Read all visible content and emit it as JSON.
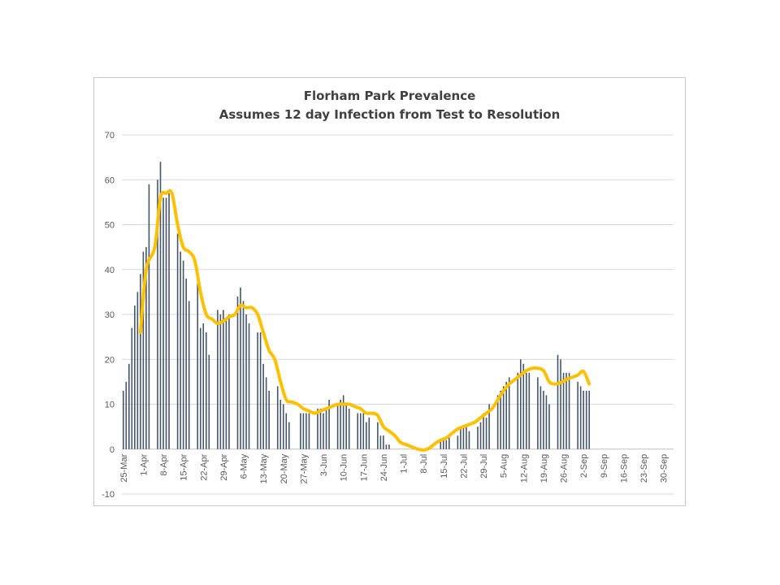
{
  "chart_data": {
    "type": "bar",
    "title": "Florham Park Prevalence",
    "subtitle": "Assumes 12 day Infection from Test to Resolution",
    "xlabel": "",
    "ylabel": "",
    "ylim": [
      -10,
      70
    ],
    "yticks": [
      -10,
      0,
      10,
      20,
      30,
      40,
      50,
      60,
      70
    ],
    "grid": true,
    "legend": "none",
    "x_start": "2020-03-25",
    "x_end": "2020-10-04",
    "xtick_labels": [
      "25-Mar",
      "1-Apr",
      "8-Apr",
      "15-Apr",
      "22-Apr",
      "29-Apr",
      "6-May",
      "13-May",
      "20-May",
      "27-May",
      "3-Jun",
      "10-Jun",
      "17-Jun",
      "24-Jun",
      "1-Jul",
      "8-Jul",
      "15-Jul",
      "22-Jul",
      "29-Jul",
      "5-Aug",
      "12-Aug",
      "19-Aug",
      "26-Aug",
      "2-Sep",
      "9-Sep",
      "16-Sep",
      "23-Sep",
      "30-Sep"
    ],
    "colors": {
      "bars": "#44546a",
      "line": "#ffc000",
      "grid": "#d9d9d9"
    },
    "series": [
      {
        "type": "bar",
        "x": [
          "2020-03-25",
          "2020-03-26",
          "2020-03-27",
          "2020-03-28",
          "2020-03-29",
          "2020-03-30",
          "2020-03-31",
          "2020-04-01",
          "2020-04-02",
          "2020-04-03",
          "2020-04-06",
          "2020-04-07",
          "2020-04-08",
          "2020-04-09",
          "2020-04-10",
          "2020-04-13",
          "2020-04-14",
          "2020-04-15",
          "2020-04-16",
          "2020-04-17",
          "2020-04-20",
          "2020-04-21",
          "2020-04-22",
          "2020-04-23",
          "2020-04-24",
          "2020-04-27",
          "2020-04-28",
          "2020-04-29",
          "2020-04-30",
          "2020-05-01",
          "2020-05-04",
          "2020-05-05",
          "2020-05-06",
          "2020-05-07",
          "2020-05-08",
          "2020-05-11",
          "2020-05-12",
          "2020-05-13",
          "2020-05-14",
          "2020-05-15",
          "2020-05-18",
          "2020-05-19",
          "2020-05-20",
          "2020-05-21",
          "2020-05-22",
          "2020-05-26",
          "2020-05-27",
          "2020-05-28",
          "2020-05-29",
          "2020-06-01",
          "2020-06-02",
          "2020-06-03",
          "2020-06-04",
          "2020-06-05",
          "2020-06-08",
          "2020-06-09",
          "2020-06-10",
          "2020-06-11",
          "2020-06-12",
          "2020-06-15",
          "2020-06-16",
          "2020-06-17",
          "2020-06-18",
          "2020-06-19",
          "2020-06-22",
          "2020-06-23",
          "2020-06-24",
          "2020-06-25",
          "2020-06-26",
          "2020-06-30",
          "2020-07-01",
          "2020-07-14",
          "2020-07-15",
          "2020-07-16",
          "2020-07-17",
          "2020-07-20",
          "2020-07-21",
          "2020-07-22",
          "2020-07-23",
          "2020-07-24",
          "2020-07-27",
          "2020-07-28",
          "2020-07-29",
          "2020-07-30",
          "2020-07-31",
          "2020-08-03",
          "2020-08-04",
          "2020-08-05",
          "2020-08-06",
          "2020-08-07",
          "2020-08-10",
          "2020-08-11",
          "2020-08-12",
          "2020-08-13",
          "2020-08-14",
          "2020-08-17",
          "2020-08-18",
          "2020-08-19",
          "2020-08-20",
          "2020-08-21",
          "2020-08-24",
          "2020-08-25",
          "2020-08-26",
          "2020-08-27",
          "2020-08-28",
          "2020-08-31",
          "2020-09-01",
          "2020-09-02",
          "2020-09-03",
          "2020-09-04"
        ],
        "values": [
          13,
          15,
          19,
          27,
          32,
          35,
          39,
          44,
          45,
          59,
          60,
          64,
          56,
          56,
          57,
          48,
          44,
          42,
          38,
          33,
          37,
          27,
          28,
          26,
          21,
          31,
          30,
          31,
          29,
          30,
          34,
          36,
          33,
          30,
          28,
          26,
          26,
          19,
          16,
          13,
          14,
          11,
          10,
          8,
          6,
          8,
          8,
          8,
          8,
          9,
          9,
          8,
          9,
          11,
          10,
          11,
          12,
          10,
          9,
          8,
          8,
          8,
          6,
          7,
          6,
          3,
          3,
          1,
          1,
          0,
          0,
          2,
          2,
          2,
          3,
          3,
          5,
          5,
          5,
          4,
          5,
          6,
          8,
          7,
          10,
          12,
          13,
          14,
          15,
          16,
          17,
          20,
          19,
          17,
          17,
          16,
          14,
          13,
          12,
          10,
          21,
          20,
          17,
          17,
          17,
          15,
          14,
          13,
          13,
          13
        ]
      },
      {
        "type": "line",
        "x": [
          "2020-03-31",
          "2020-04-02",
          "2020-04-05",
          "2020-04-07",
          "2020-04-09",
          "2020-04-11",
          "2020-04-13",
          "2020-04-15",
          "2020-04-17",
          "2020-04-19",
          "2020-04-21",
          "2020-04-23",
          "2020-04-25",
          "2020-04-27",
          "2020-04-29",
          "2020-05-01",
          "2020-05-03",
          "2020-05-05",
          "2020-05-07",
          "2020-05-09",
          "2020-05-11",
          "2020-05-13",
          "2020-05-15",
          "2020-05-17",
          "2020-05-19",
          "2020-05-21",
          "2020-05-23",
          "2020-05-25",
          "2020-05-27",
          "2020-05-29",
          "2020-05-31",
          "2020-06-02",
          "2020-06-04",
          "2020-06-06",
          "2020-06-08",
          "2020-06-10",
          "2020-06-12",
          "2020-06-14",
          "2020-06-16",
          "2020-06-18",
          "2020-06-20",
          "2020-06-22",
          "2020-06-24",
          "2020-06-26",
          "2020-06-28",
          "2020-06-30",
          "2020-07-02",
          "2020-07-04",
          "2020-07-06",
          "2020-07-08",
          "2020-07-10",
          "2020-07-12",
          "2020-07-14",
          "2020-07-16",
          "2020-07-18",
          "2020-07-20",
          "2020-07-22",
          "2020-07-24",
          "2020-07-26",
          "2020-07-28",
          "2020-07-30",
          "2020-08-01",
          "2020-08-03",
          "2020-08-05",
          "2020-08-07",
          "2020-08-09",
          "2020-08-11",
          "2020-08-13",
          "2020-08-15",
          "2020-08-17",
          "2020-08-19",
          "2020-08-21",
          "2020-08-23",
          "2020-08-25",
          "2020-08-27",
          "2020-08-29",
          "2020-08-31",
          "2020-09-02",
          "2020-09-04"
        ],
        "values": [
          26,
          40,
          45,
          56,
          57,
          57,
          50,
          45,
          44,
          42,
          35,
          30,
          29,
          28,
          28.5,
          29.5,
          30,
          32,
          31.5,
          31.5,
          30,
          26,
          22,
          20,
          15,
          11,
          10.5,
          10,
          9,
          8.5,
          8,
          8.5,
          9,
          9.5,
          10,
          10,
          10,
          9.5,
          9,
          8,
          8,
          7.5,
          5,
          4,
          3,
          1.5,
          1,
          0.5,
          0,
          -0.2,
          0.2,
          1.2,
          2,
          2.5,
          3.5,
          4.5,
          5,
          5.5,
          6,
          7,
          8,
          9,
          11,
          13,
          14.5,
          15.5,
          16.5,
          17.5,
          18,
          18,
          17.5,
          15,
          14.5,
          14.8,
          15.5,
          16,
          16.5,
          17.3,
          14.5
        ]
      }
    ]
  }
}
